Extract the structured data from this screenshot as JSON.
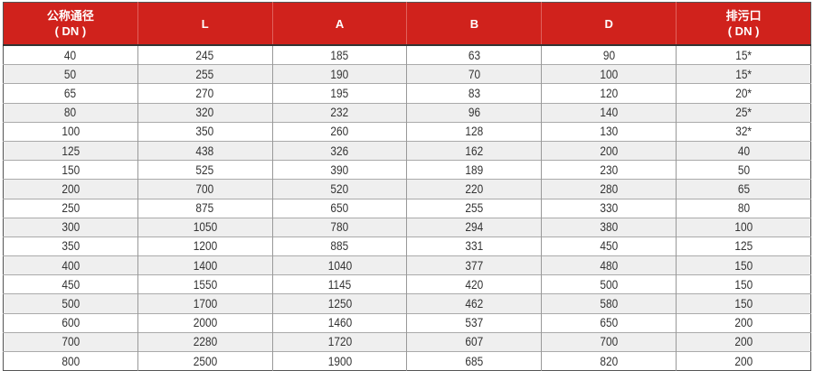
{
  "table": {
    "headers": [
      {
        "line1": "公称通径",
        "line2": "( DN )"
      },
      {
        "line1": "L",
        "line2": ""
      },
      {
        "line1": "A",
        "line2": ""
      },
      {
        "line1": "B",
        "line2": ""
      },
      {
        "line1": "D",
        "line2": ""
      },
      {
        "line1": "排污口",
        "line2": "( DN )"
      }
    ],
    "rows": [
      [
        "40",
        "245",
        "185",
        "63",
        "90",
        "15*"
      ],
      [
        "50",
        "255",
        "190",
        "70",
        "100",
        "15*"
      ],
      [
        "65",
        "270",
        "195",
        "83",
        "120",
        "20*"
      ],
      [
        "80",
        "320",
        "232",
        "96",
        "140",
        "25*"
      ],
      [
        "100",
        "350",
        "260",
        "128",
        "130",
        "32*"
      ],
      [
        "125",
        "438",
        "326",
        "162",
        "200",
        "40"
      ],
      [
        "150",
        "525",
        "390",
        "189",
        "230",
        "50"
      ],
      [
        "200",
        "700",
        "520",
        "220",
        "280",
        "65"
      ],
      [
        "250",
        "875",
        "650",
        "255",
        "330",
        "80"
      ],
      [
        "300",
        "1050",
        "780",
        "294",
        "380",
        "100"
      ],
      [
        "350",
        "1200",
        "885",
        "331",
        "450",
        "125"
      ],
      [
        "400",
        "1400",
        "1040",
        "377",
        "480",
        "150"
      ],
      [
        "450",
        "1550",
        "1145",
        "420",
        "500",
        "150"
      ],
      [
        "500",
        "1700",
        "1250",
        "462",
        "580",
        "150"
      ],
      [
        "600",
        "2000",
        "1460",
        "537",
        "650",
        "200"
      ],
      [
        "700",
        "2280",
        "1720",
        "607",
        "700",
        "200"
      ],
      [
        "800",
        "2500",
        "1900",
        "685",
        "820",
        "200"
      ]
    ]
  },
  "colors": {
    "header_bg": "#d0221c",
    "header_text": "#ffffff",
    "alt_row_bg": "#efefef"
  }
}
